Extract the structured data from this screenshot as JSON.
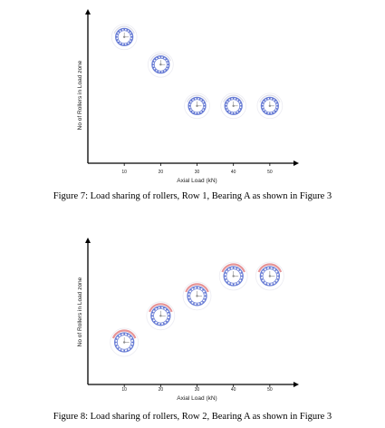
{
  "colors": {
    "axis": "#000000",
    "roller_ring": "#6b7fd6",
    "roller_dot": "#5a6fd0",
    "load_zone_row1": "#d9d9e6",
    "load_zone_row2": "#e3888c",
    "hub": "#8c8c8c"
  },
  "chart_data": [
    {
      "type": "scatter",
      "title": "",
      "xlabel": "Axial Load (kN)",
      "ylabel": "No of Rollers in Load zone",
      "x_ticks": [
        "10",
        "20",
        "30",
        "40",
        "50"
      ],
      "xlim": [
        0,
        58
      ],
      "ylim": [
        0,
        10
      ],
      "grid": false,
      "marker": "bearing-icon",
      "series": [
        {
          "x": [
            10,
            20,
            30,
            40,
            50
          ],
          "values": [
            8.5,
            6.5,
            3.5,
            3.5,
            3.5
          ]
        }
      ]
    },
    {
      "type": "scatter",
      "title": "",
      "xlabel": "Axial Load (kN)",
      "ylabel": "No of Rollers in Load zone",
      "x_ticks": [
        "10",
        "20",
        "30",
        "40",
        "50"
      ],
      "xlim": [
        0,
        58
      ],
      "ylim": [
        0,
        10
      ],
      "grid": false,
      "marker": "bearing-icon",
      "series": [
        {
          "x": [
            10,
            20,
            30,
            40,
            50
          ],
          "values": [
            2.5,
            4.5,
            6.0,
            7.5,
            7.5
          ]
        }
      ]
    }
  ],
  "captions": [
    "Figure 7: Load sharing of rollers, Row 1, Bearing A as shown in Figure 3",
    "Figure 8: Load sharing of rollers, Row 2, Bearing A as shown in Figure 3"
  ]
}
